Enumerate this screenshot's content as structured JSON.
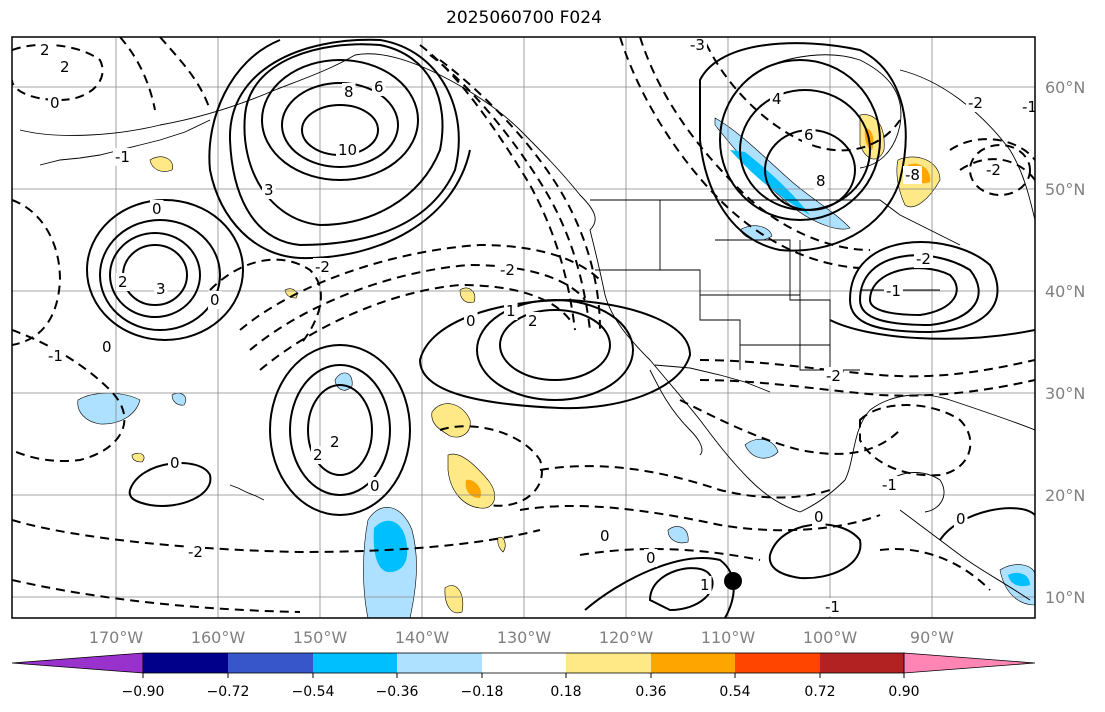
{
  "title": "2025060700 F024",
  "map": {
    "lat_labels": [
      "60°N",
      "50°N",
      "40°N",
      "30°N",
      "20°N",
      "10°N"
    ],
    "lon_labels": [
      "170°W",
      "160°W",
      "150°W",
      "140°W",
      "130°W",
      "120°W",
      "110°W",
      "100°W",
      "90°W"
    ],
    "contour_labels": [
      "2",
      "2",
      "0",
      "6",
      "8",
      "10",
      "3",
      "-1",
      "0",
      "2",
      "3",
      "0",
      "-2",
      "-2",
      "0",
      "2",
      "-1",
      "0",
      "2",
      "2",
      "0",
      "0",
      "-2",
      "0",
      "-1",
      "-2",
      "0",
      "0",
      "1",
      "0",
      "-1",
      "-3",
      "4",
      "6",
      "8",
      "-8",
      "-2",
      "-2",
      "-2",
      "-1",
      "1",
      "-1"
    ]
  },
  "colorbar": {
    "colors": [
      "#9932cc",
      "#00008b",
      "#3656c9",
      "#00bfff",
      "#aee0ff",
      "#ffffff",
      "#ffe886",
      "#ffa500",
      "#ff4500",
      "#b22222",
      "#ff86b4"
    ],
    "tick_labels": [
      "−0.90",
      "−0.72",
      "−0.54",
      "−0.36",
      "−0.18",
      "0.18",
      "0.36",
      "0.54",
      "0.72",
      "0.90"
    ]
  },
  "marker": {
    "name": "black-dot",
    "color": "#000000"
  }
}
